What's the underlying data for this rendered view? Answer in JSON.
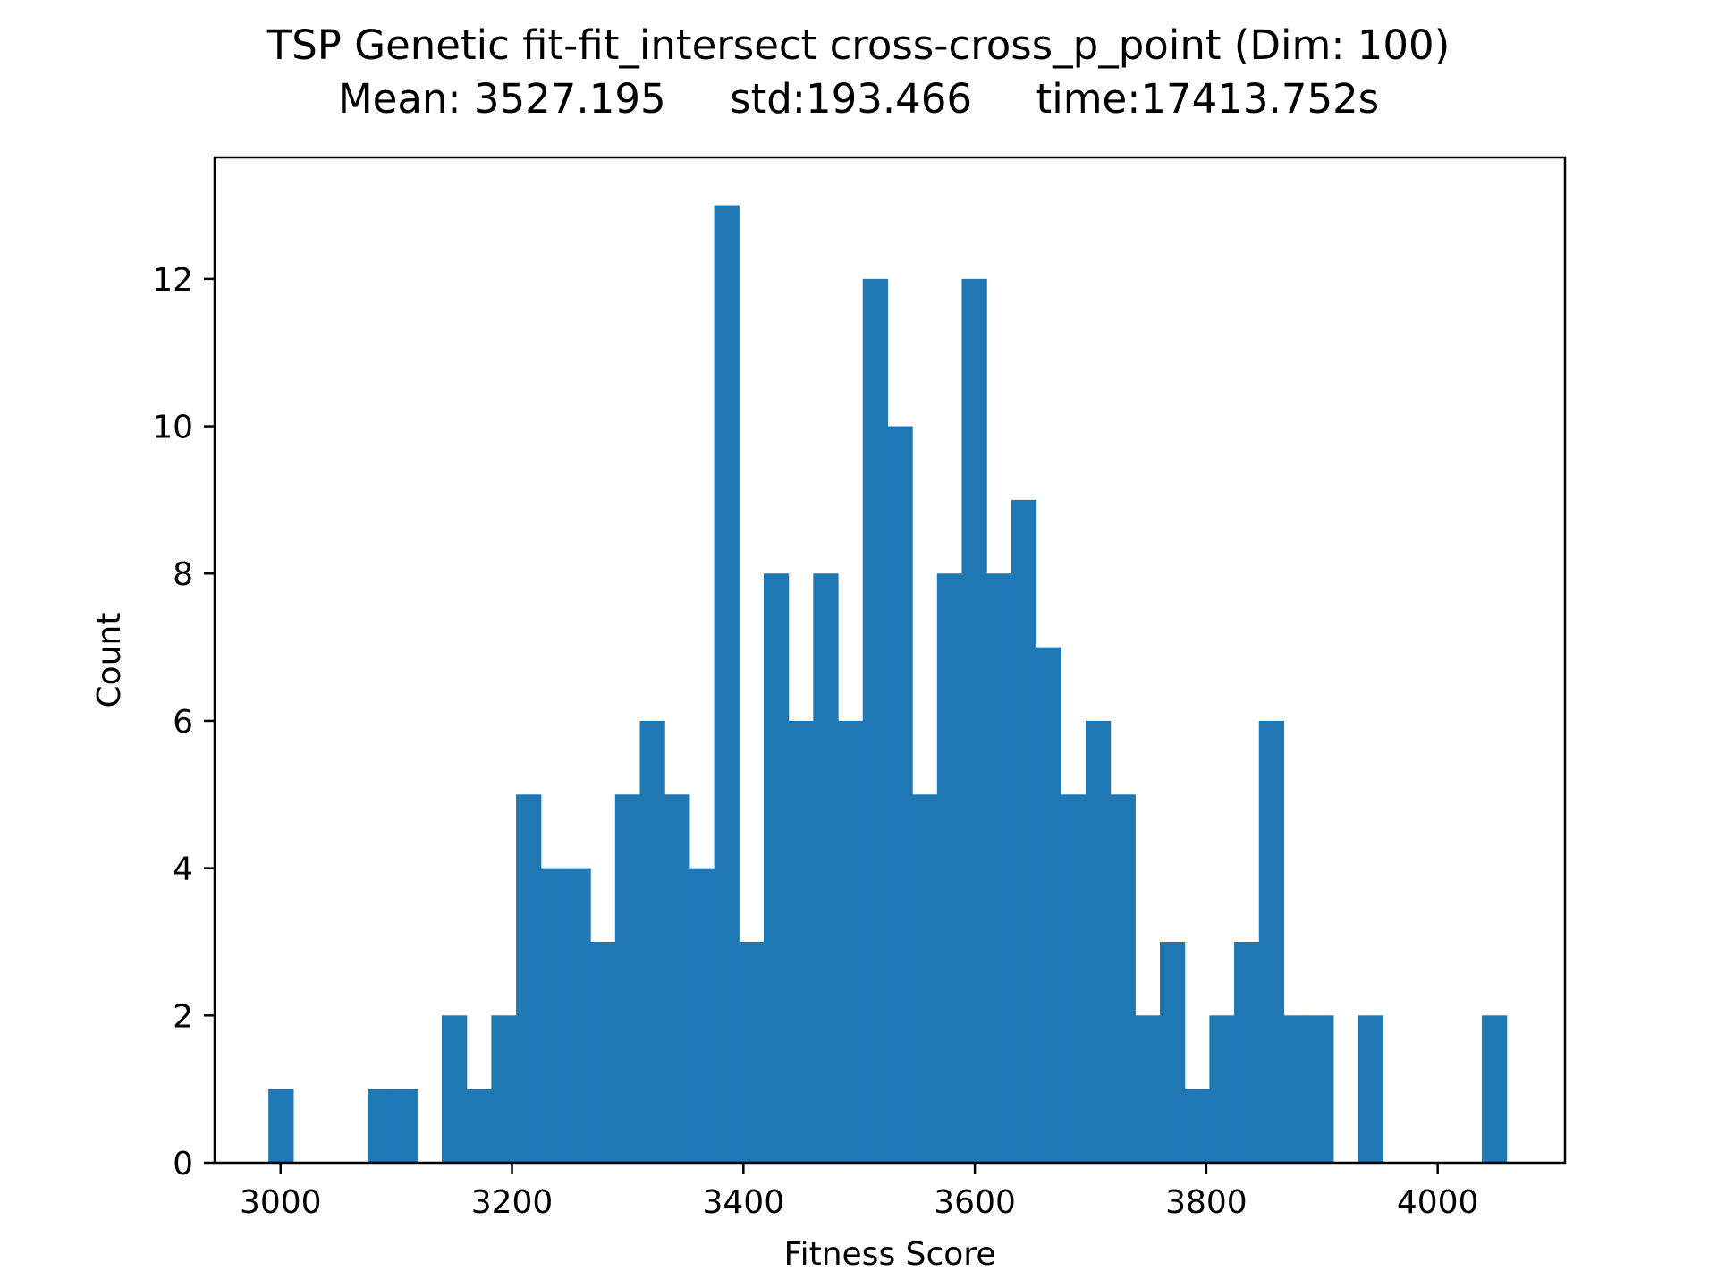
{
  "chart_data": {
    "type": "bar",
    "title": "TSP Genetic fit-fit_intersect cross-cross_p_point (Dim: 100)",
    "subtitle": "Mean: 3527.195     std:193.466     time:17413.752s",
    "xlabel": "Fitness Score",
    "ylabel": "Count",
    "xlim": [
      2943,
      4110
    ],
    "ylim": [
      0,
      13.65
    ],
    "x_ticks": [
      3000,
      3200,
      3400,
      3600,
      3800,
      4000
    ],
    "y_ticks": [
      0,
      2,
      4,
      6,
      8,
      10,
      12
    ],
    "bin_start": 2989.5,
    "bin_width": 21.4,
    "values": [
      1,
      0,
      0,
      0,
      1,
      1,
      0,
      2,
      1,
      2,
      5,
      4,
      4,
      3,
      5,
      6,
      5,
      4,
      13,
      3,
      8,
      6,
      8,
      6,
      12,
      10,
      5,
      8,
      12,
      8,
      9,
      7,
      5,
      6,
      5,
      2,
      3,
      1,
      2,
      3,
      6,
      2,
      2,
      0,
      2,
      0,
      0,
      0,
      0,
      2
    ],
    "color": "#1f77b4",
    "grid": false
  }
}
